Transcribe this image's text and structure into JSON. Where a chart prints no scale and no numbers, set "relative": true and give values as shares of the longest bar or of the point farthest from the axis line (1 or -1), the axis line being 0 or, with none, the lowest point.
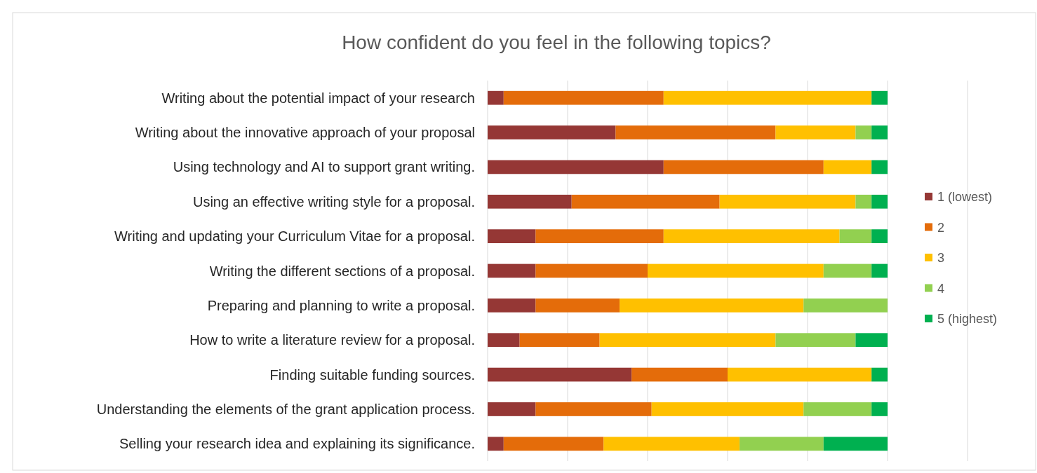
{
  "chart_data": {
    "type": "bar",
    "orientation": "horizontal",
    "stacked": true,
    "relative": true,
    "grid": "x",
    "legend": "right",
    "title": "How confident do you feel in the following topics?",
    "categories": [
      "Writing about the potential impact of your research",
      "Writing about the innovative approach of your proposal",
      "Using technology and AI to support grant writing.",
      "Using an effective writing style for a proposal.",
      "Writing and updating your Curriculum Vitae for a proposal.",
      "Writing the different sections of a proposal.",
      "Preparing and planning to write a proposal.",
      "How to write a literature review for a proposal.",
      "Finding suitable funding sources.",
      "Understanding the elements of the grant application process.",
      "Selling your research idea and explaining its significance."
    ],
    "series": [
      {
        "name": "1 (lowest)",
        "color": "#953735",
        "values": [
          0.04,
          0.32,
          0.44,
          0.21,
          0.12,
          0.12,
          0.12,
          0.08,
          0.36,
          0.12,
          0.04
        ]
      },
      {
        "name": "2",
        "color": "#e46c0a",
        "values": [
          0.4,
          0.4,
          0.4,
          0.37,
          0.32,
          0.28,
          0.21,
          0.2,
          0.24,
          0.29,
          0.25
        ]
      },
      {
        "name": "3",
        "color": "#ffc000",
        "values": [
          0.52,
          0.2,
          0.12,
          0.34,
          0.44,
          0.44,
          0.46,
          0.44,
          0.36,
          0.38,
          0.34
        ]
      },
      {
        "name": "4",
        "color": "#92d050",
        "values": [
          0,
          0.04,
          0,
          0.04,
          0.08,
          0.12,
          0.21,
          0.2,
          0,
          0.17,
          0.21
        ]
      },
      {
        "name": "5 (highest)",
        "color": "#00b050",
        "values": [
          0.04,
          0.04,
          0.04,
          0.04,
          0.04,
          0.04,
          0,
          0.08,
          0.04,
          0.04,
          0.16
        ]
      }
    ]
  }
}
